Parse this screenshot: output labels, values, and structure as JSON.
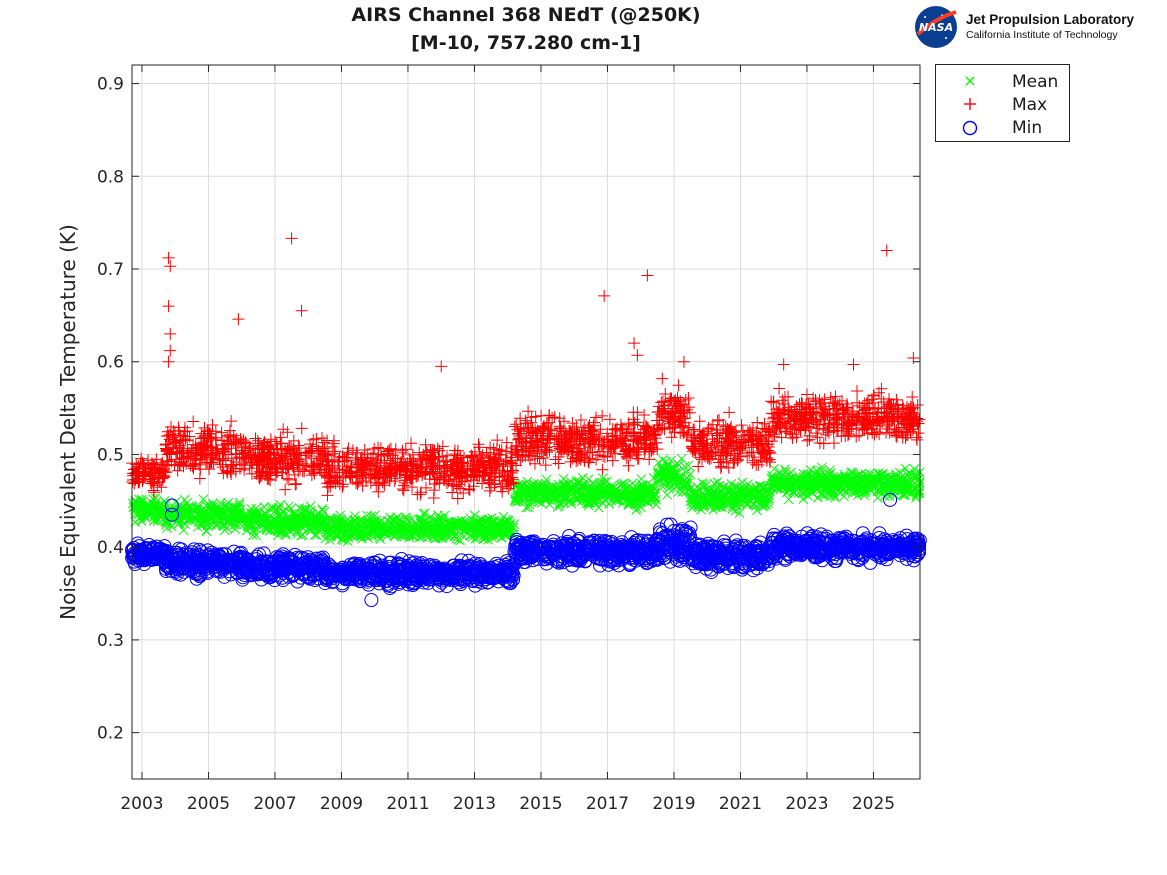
{
  "chart_data": {
    "type": "scatter",
    "title": "AIRS Channel 368 NEdT (@250K)",
    "subtitle": "[M-10, 757.280 cm-1]",
    "xlabel": "",
    "ylabel": "Noise Equivalent Delta Temperature (K)",
    "xlim": [
      2002.7,
      2026.4
    ],
    "ylim": [
      0.15,
      0.92
    ],
    "xticks": [
      2003,
      2005,
      2007,
      2009,
      2011,
      2013,
      2015,
      2017,
      2019,
      2021,
      2023,
      2025
    ],
    "xtick_labels": [
      "2003",
      "2005",
      "2007",
      "2009",
      "2011",
      "2013",
      "2015",
      "2017",
      "2019",
      "2021",
      "2023",
      "2025"
    ],
    "yticks": [
      0.2,
      0.3,
      0.4,
      0.5,
      0.6,
      0.7,
      0.8,
      0.9
    ],
    "ytick_labels": [
      "0.2",
      "0.3",
      "0.4",
      "0.5",
      "0.6",
      "0.7",
      "0.8",
      "0.9"
    ],
    "grid": true,
    "legend_position": "outside-top-right",
    "series": [
      {
        "name": "Mean",
        "marker": "x",
        "color": "#00ff00",
        "segments": [
          {
            "start": 2002.7,
            "end": 2003.7,
            "level": 0.44,
            "spread": 0.01
          },
          {
            "start": 2003.7,
            "end": 2006.0,
            "level": 0.435,
            "spread": 0.012
          },
          {
            "start": 2006.0,
            "end": 2008.5,
            "level": 0.428,
            "spread": 0.012
          },
          {
            "start": 2008.5,
            "end": 2014.2,
            "level": 0.42,
            "spread": 0.011
          },
          {
            "start": 2014.2,
            "end": 2018.5,
            "level": 0.458,
            "spread": 0.012
          },
          {
            "start": 2018.5,
            "end": 2019.5,
            "level": 0.475,
            "spread": 0.015
          },
          {
            "start": 2019.5,
            "end": 2021.9,
            "level": 0.455,
            "spread": 0.012
          },
          {
            "start": 2021.9,
            "end": 2026.4,
            "level": 0.468,
            "spread": 0.012
          }
        ]
      },
      {
        "name": "Max",
        "marker": "+",
        "color": "#ff0000",
        "segments": [
          {
            "start": 2002.7,
            "end": 2003.7,
            "level": 0.48,
            "spread": 0.014
          },
          {
            "start": 2003.7,
            "end": 2006.0,
            "level": 0.505,
            "spread": 0.022
          },
          {
            "start": 2006.0,
            "end": 2008.5,
            "level": 0.495,
            "spread": 0.022
          },
          {
            "start": 2008.5,
            "end": 2014.2,
            "level": 0.485,
            "spread": 0.02
          },
          {
            "start": 2014.2,
            "end": 2018.5,
            "level": 0.515,
            "spread": 0.022
          },
          {
            "start": 2018.5,
            "end": 2019.5,
            "level": 0.545,
            "spread": 0.022
          },
          {
            "start": 2019.5,
            "end": 2021.9,
            "level": 0.512,
            "spread": 0.02
          },
          {
            "start": 2021.9,
            "end": 2026.4,
            "level": 0.54,
            "spread": 0.02
          }
        ],
        "outliers": [
          [
            2003.8,
            0.712
          ],
          [
            2003.85,
            0.703
          ],
          [
            2003.8,
            0.66
          ],
          [
            2003.85,
            0.63
          ],
          [
            2003.85,
            0.612
          ],
          [
            2003.8,
            0.6
          ],
          [
            2005.9,
            0.646
          ],
          [
            2007.5,
            0.733
          ],
          [
            2007.8,
            0.655
          ],
          [
            2016.9,
            0.671
          ],
          [
            2017.8,
            0.62
          ],
          [
            2017.9,
            0.607
          ],
          [
            2018.2,
            0.693
          ],
          [
            2025.4,
            0.72
          ],
          [
            2026.2,
            0.604
          ],
          [
            2012.0,
            0.595
          ],
          [
            2022.3,
            0.597
          ],
          [
            2024.4,
            0.597
          ],
          [
            2019.3,
            0.6
          ]
        ]
      },
      {
        "name": "Min",
        "marker": "o",
        "color": "#0000ff",
        "segments": [
          {
            "start": 2002.7,
            "end": 2003.7,
            "level": 0.392,
            "spread": 0.008
          },
          {
            "start": 2003.7,
            "end": 2006.0,
            "level": 0.383,
            "spread": 0.011
          },
          {
            "start": 2006.0,
            "end": 2008.5,
            "level": 0.378,
            "spread": 0.011
          },
          {
            "start": 2008.5,
            "end": 2014.2,
            "level": 0.372,
            "spread": 0.01
          },
          {
            "start": 2014.2,
            "end": 2018.5,
            "level": 0.395,
            "spread": 0.011
          },
          {
            "start": 2018.5,
            "end": 2019.5,
            "level": 0.405,
            "spread": 0.016
          },
          {
            "start": 2019.5,
            "end": 2021.9,
            "level": 0.39,
            "spread": 0.012
          },
          {
            "start": 2021.9,
            "end": 2026.4,
            "level": 0.4,
            "spread": 0.011
          }
        ],
        "outliers": [
          [
            2003.9,
            0.445
          ],
          [
            2003.9,
            0.435
          ],
          [
            2009.9,
            0.343
          ],
          [
            2025.5,
            0.451
          ]
        ]
      }
    ]
  },
  "logo": {
    "badge_text": "NASA",
    "org_name": "Jet Propulsion Laboratory",
    "org_sub": "California Institute of Technology"
  },
  "legend": {
    "items": [
      {
        "label": "Mean",
        "marker": "x",
        "color": "#00ff00"
      },
      {
        "label": "Max",
        "marker": "+",
        "color": "#ff0000"
      },
      {
        "label": "Min",
        "marker": "o",
        "color": "#0000ff"
      }
    ]
  }
}
